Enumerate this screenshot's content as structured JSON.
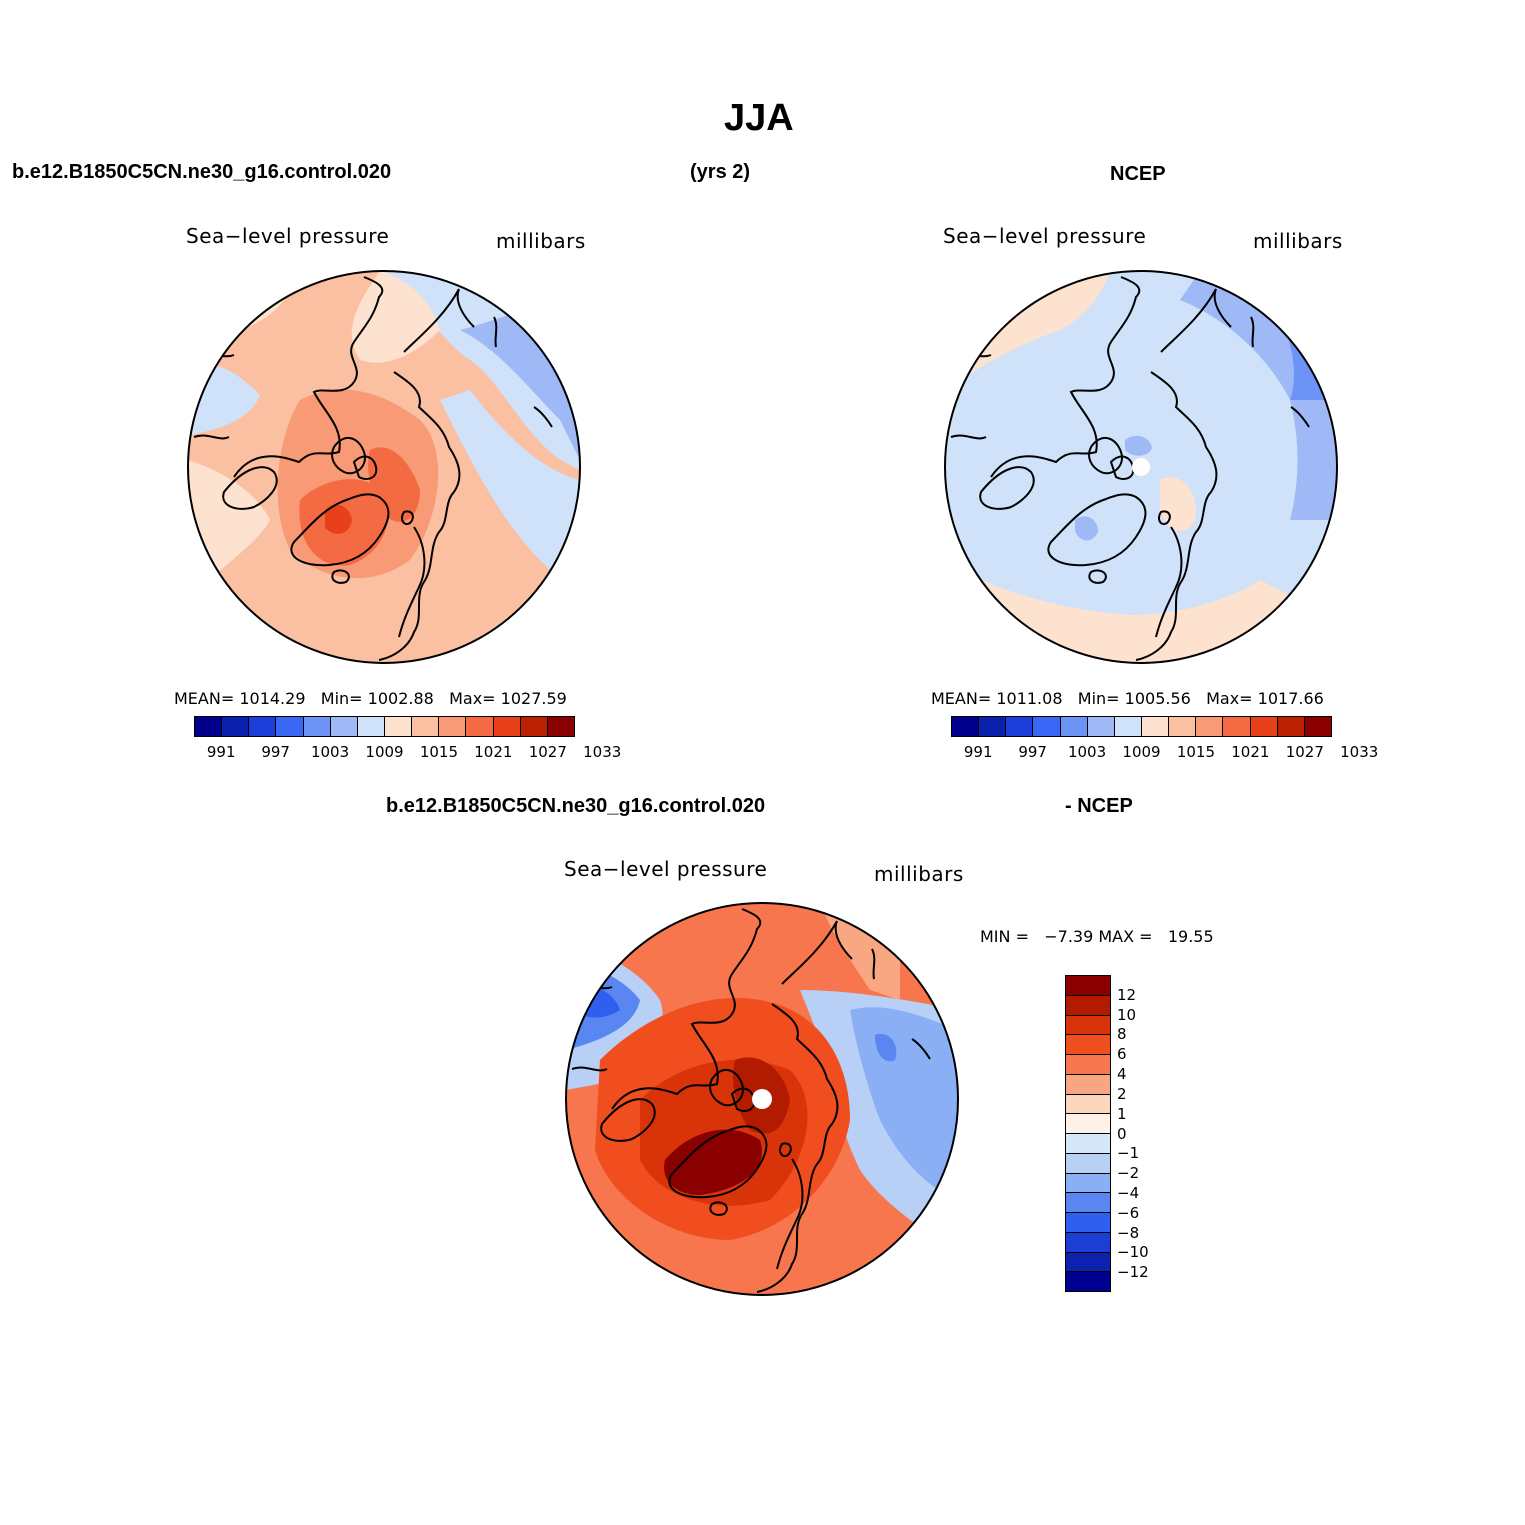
{
  "figure": {
    "title": "JJA",
    "case_name": "b.e12.B1850C5CN.ne30_g16.control.020",
    "years": "(yrs 2)",
    "obs_name": "NCEP"
  },
  "panels": [
    {
      "id": "model",
      "variable": "Sea−level pressure",
      "units": "millibars",
      "stats": {
        "mean_label": "MEAN=",
        "mean": "1014.29",
        "min_label": "Min=",
        "min": "1002.88",
        "max_label": "Max=",
        "max": "1027.59"
      }
    },
    {
      "id": "obs",
      "variable": "Sea−level pressure",
      "units": "millibars",
      "stats": {
        "mean_label": "MEAN=",
        "mean": "1011.08",
        "min_label": "Min=",
        "min": "1005.56",
        "max_label": "Max=",
        "max": "1017.66"
      }
    },
    {
      "id": "diff",
      "title_left": "b.e12.B1850C5CN.ne30_g16.control.020",
      "title_right": "- NCEP",
      "variable": "Sea−level pressure",
      "units": "millibars",
      "stats": {
        "min_label": "MIN =",
        "min": "−7.39",
        "max_label": "MAX =",
        "max": "19.55"
      }
    }
  ],
  "colorbars": {
    "slp": {
      "labels": [
        "991",
        "997",
        "1003",
        "1009",
        "1015",
        "1021",
        "1027",
        "1033"
      ],
      "colors": [
        "#00008c",
        "#0a1fab",
        "#1c3fd9",
        "#3a66f5",
        "#6e93f7",
        "#9fb9f7",
        "#cfe2fa",
        "#fde2cf",
        "#fbbfa2",
        "#f99a76",
        "#f46a42",
        "#e8401a",
        "#bb2003",
        "#8a0000"
      ]
    },
    "diff": {
      "labels": [
        "12",
        "10",
        "8",
        "6",
        "4",
        "2",
        "1",
        "0",
        "−1",
        "−2",
        "−4",
        "−6",
        "−8",
        "−10",
        "−12"
      ],
      "colors": [
        "#8a0000",
        "#b31b00",
        "#d9330a",
        "#f04e1f",
        "#f7764d",
        "#f9a682",
        "#fbd6bd",
        "#fdf1e8",
        "#d7e6f8",
        "#b8cff6",
        "#8aaff5",
        "#5a86f2",
        "#2f5fee",
        "#1a3ed6",
        "#0c22ae",
        "#000090"
      ]
    }
  },
  "chart_data": [
    {
      "type": "heatmap",
      "title": "Sea−level pressure",
      "units": "millibars",
      "projection": "north polar stereographic",
      "season": "JJA",
      "source": "b.e12.B1850C5CN.ne30_g16.control.020",
      "mean": 1014.29,
      "min": 1002.88,
      "max": 1027.59,
      "levels": [
        991,
        994,
        997,
        1000,
        1003,
        1006,
        1009,
        1012,
        1015,
        1018,
        1021,
        1024,
        1027,
        1030,
        1033
      ]
    },
    {
      "type": "heatmap",
      "title": "Sea−level pressure",
      "units": "millibars",
      "projection": "north polar stereographic",
      "season": "JJA",
      "source": "NCEP",
      "mean": 1011.08,
      "min": 1005.56,
      "max": 1017.66,
      "levels": [
        991,
        994,
        997,
        1000,
        1003,
        1006,
        1009,
        1012,
        1015,
        1018,
        1021,
        1024,
        1027,
        1030,
        1033
      ]
    },
    {
      "type": "heatmap",
      "title": "Sea−level pressure",
      "units": "millibars",
      "projection": "north polar stereographic",
      "season": "JJA",
      "source": "model minus NCEP",
      "min": -7.39,
      "max": 19.55,
      "levels": [
        -12,
        -10,
        -8,
        -6,
        -4,
        -2,
        -1,
        0,
        1,
        2,
        4,
        6,
        8,
        10,
        12
      ]
    }
  ]
}
